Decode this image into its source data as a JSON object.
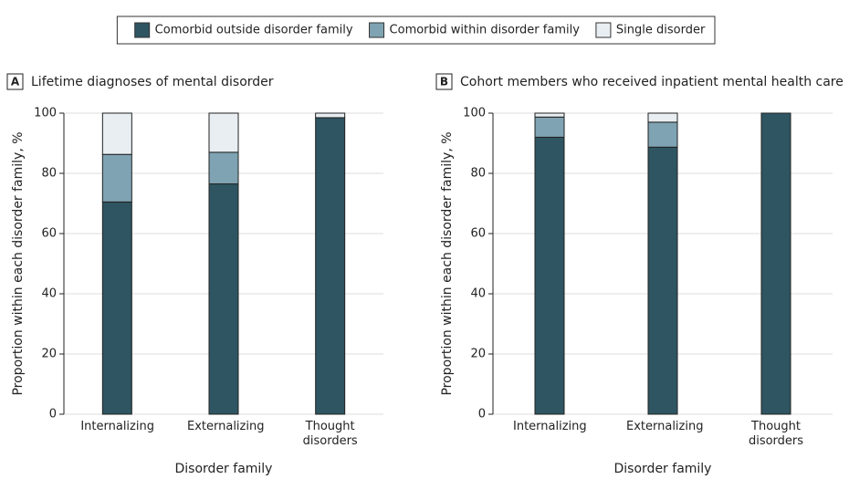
{
  "legend": [
    {
      "name": "Comorbid outside disorder family",
      "color": "#2e5561"
    },
    {
      "name": "Comorbid within disorder family",
      "color": "#7fa3b2"
    },
    {
      "name": "Single disorder",
      "color": "#e8eef2"
    }
  ],
  "chart_data": [
    {
      "type": "bar",
      "stacked": true,
      "panel": "A",
      "title": "Lifetime diagnoses of mental disorder",
      "xlabel": "Disorder family",
      "ylabel": "Proportion within each disorder family, %",
      "categories": [
        "Internalizing",
        "Externalizing",
        "Thought disorders"
      ],
      "series": [
        {
          "values": [
            70.5,
            76.5,
            98.5
          ]
        },
        {
          "values": [
            15.8,
            10.5,
            0
          ]
        },
        {
          "values": [
            13.7,
            13,
            1.5
          ]
        }
      ],
      "ylim": [
        0,
        100
      ],
      "yticks": [
        0,
        20,
        40,
        60,
        80,
        100
      ],
      "grid": true
    },
    {
      "type": "bar",
      "stacked": true,
      "panel": "B",
      "title": "Cohort members who received inpatient mental health care",
      "xlabel": "Disorder family",
      "ylabel": "Proportion within each disorder family, %",
      "categories": [
        "Internalizing",
        "Externalizing",
        "Thought disorders"
      ],
      "series": [
        {
          "values": [
            92,
            88.7,
            100
          ]
        },
        {
          "values": [
            6.7,
            8.3,
            0
          ]
        },
        {
          "values": [
            1.3,
            3,
            0
          ]
        }
      ],
      "ylim": [
        0,
        100
      ],
      "yticks": [
        0,
        20,
        40,
        60,
        80,
        100
      ],
      "grid": true
    }
  ]
}
